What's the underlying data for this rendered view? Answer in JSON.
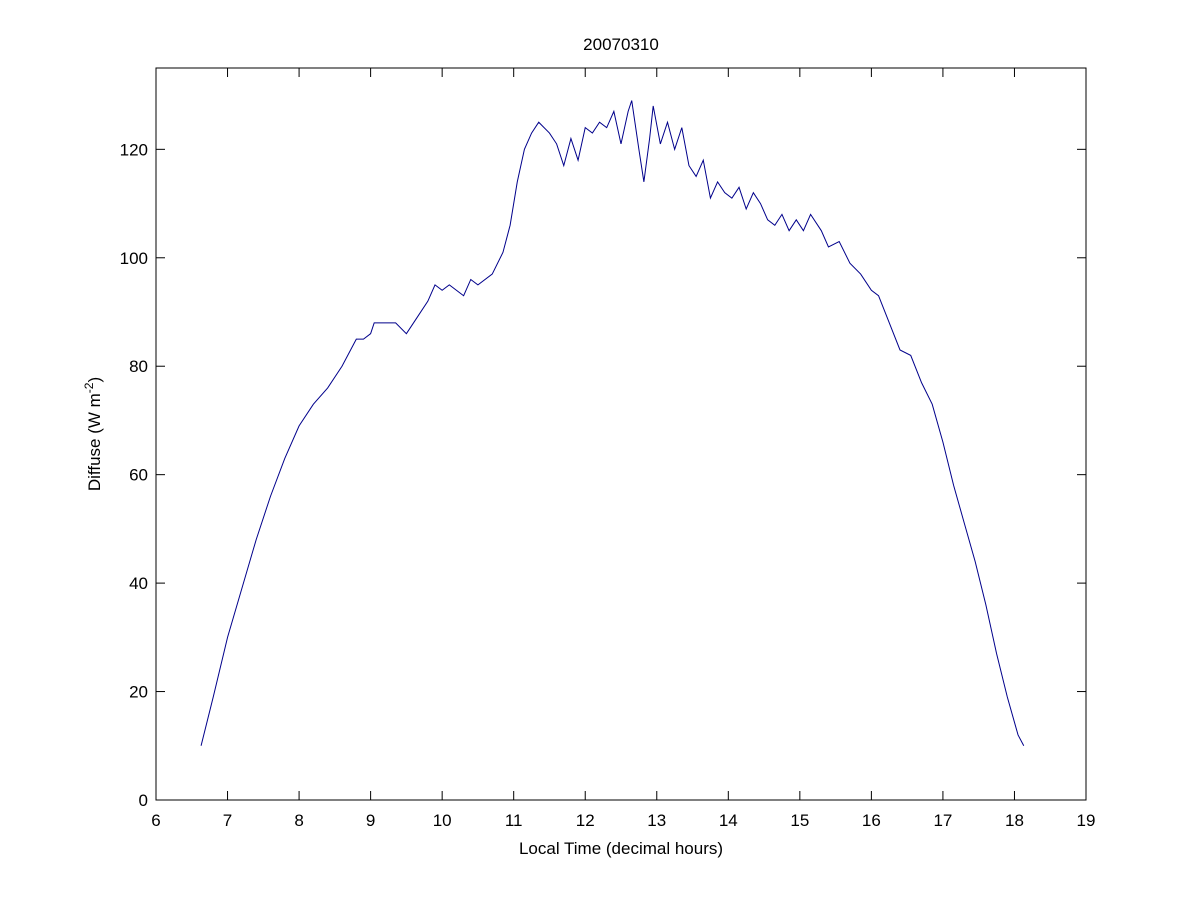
{
  "chart_data": {
    "type": "line",
    "title": "20070310",
    "xlabel": "Local Time (decimal hours)",
    "ylabel": [
      "Diffuse (W m",
      "-2",
      ")"
    ],
    "xlim": [
      6,
      19
    ],
    "ylim": [
      0,
      135
    ],
    "xticks": [
      6,
      7,
      8,
      9,
      10,
      11,
      12,
      13,
      14,
      15,
      16,
      17,
      18,
      19
    ],
    "yticks": [
      0,
      20,
      40,
      60,
      80,
      100,
      120
    ],
    "grid": false,
    "series": [
      {
        "color": "#00008b",
        "x": [
          6.63,
          6.8,
          7.0,
          7.2,
          7.4,
          7.6,
          7.8,
          8.0,
          8.2,
          8.4,
          8.6,
          8.8,
          8.9,
          9.0,
          9.05,
          9.2,
          9.35,
          9.5,
          9.65,
          9.8,
          9.9,
          10.0,
          10.1,
          10.3,
          10.4,
          10.5,
          10.7,
          10.85,
          10.95,
          11.05,
          11.15,
          11.25,
          11.35,
          11.5,
          11.6,
          11.7,
          11.8,
          11.9,
          12.0,
          12.1,
          12.2,
          12.3,
          12.4,
          12.5,
          12.6,
          12.65,
          12.75,
          12.82,
          12.9,
          12.95,
          13.05,
          13.15,
          13.25,
          13.35,
          13.45,
          13.55,
          13.65,
          13.75,
          13.85,
          13.95,
          14.05,
          14.15,
          14.25,
          14.35,
          14.45,
          14.55,
          14.65,
          14.75,
          14.85,
          14.95,
          15.05,
          15.15,
          15.3,
          15.4,
          15.55,
          15.7,
          15.85,
          16.0,
          16.1,
          16.25,
          16.4,
          16.55,
          16.7,
          16.85,
          17.0,
          17.15,
          17.3,
          17.45,
          17.6,
          17.75,
          17.9,
          18.05,
          18.13
        ],
        "values": [
          10,
          19,
          30,
          39,
          48,
          56,
          63,
          69,
          73,
          76,
          80,
          85,
          85,
          86,
          88,
          88,
          88,
          86,
          89,
          92,
          95,
          94,
          95,
          93,
          96,
          95,
          97,
          101,
          106,
          114,
          120,
          123,
          125,
          123,
          121,
          117,
          122,
          118,
          124,
          123,
          125,
          124,
          127,
          121,
          127,
          129,
          120,
          114,
          122,
          128,
          121,
          125,
          120,
          124,
          117,
          115,
          118,
          111,
          114,
          112,
          111,
          113,
          109,
          112,
          110,
          107,
          106,
          108,
          105,
          107,
          105,
          108,
          105,
          102,
          103,
          99,
          97,
          94,
          93,
          88,
          83,
          82,
          77,
          73,
          66,
          58,
          51,
          44,
          36,
          27,
          19,
          12,
          10
        ]
      }
    ]
  }
}
